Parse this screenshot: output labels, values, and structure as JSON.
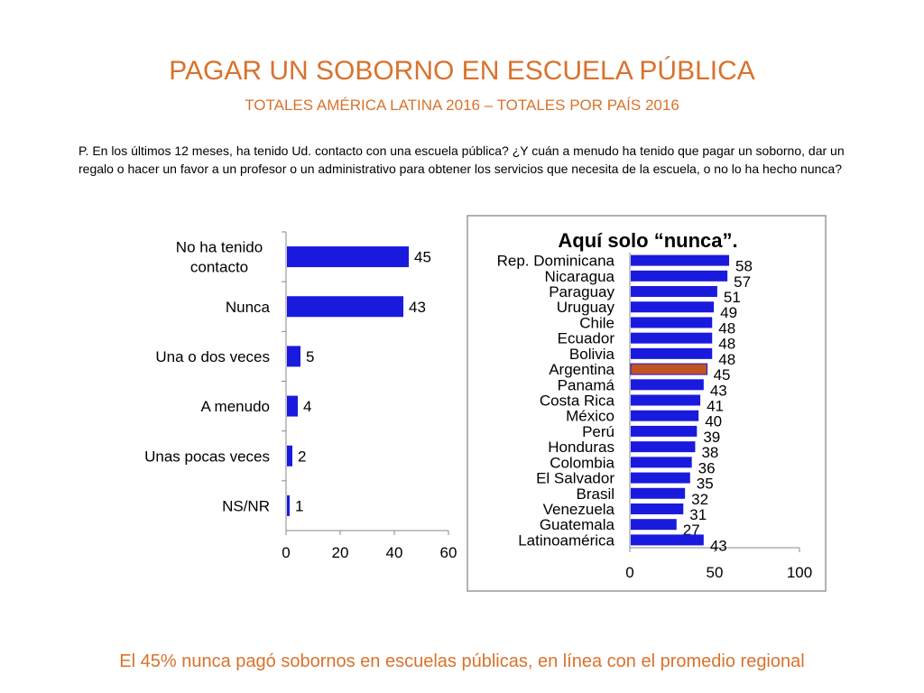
{
  "slide": {
    "title": "PAGAR UN SOBORNO EN ESCUELA PÚBLICA",
    "subtitle": "TOTALES AMÉRICA LATINA 2016 – TOTALES POR PAÍS 2016",
    "question": "P. En los últimos 12 meses, ha tenido Ud. contacto con una escuela pública? ¿Y cuán a menudo ha tenido que pagar un soborno, dar un regalo o hacer un favor a un profesor o un administrativo para obtener los servicios que necesita de la escuela, o no lo ha hecho nunca?",
    "footer": "El 45% nunca pagó sobornos en escuelas públicas, en línea con el promedio regional"
  },
  "chart_data": [
    {
      "type": "bar",
      "orientation": "horizontal",
      "title": "",
      "categories": [
        "No ha tenido contacto",
        "Nunca",
        "Una o dos veces",
        "A menudo",
        "Unas pocas veces",
        "NS/NR"
      ],
      "values": [
        45,
        43,
        5,
        4,
        2,
        1
      ],
      "xlim": [
        0,
        60
      ],
      "xticks": [
        "0",
        "20",
        "40",
        "60"
      ],
      "bar_color": "#1a1adf"
    },
    {
      "type": "bar",
      "orientation": "horizontal",
      "title": "Aquí solo “nunca”.",
      "categories": [
        "Rep. Dominicana",
        "Nicaragua",
        "Paraguay",
        "Uruguay",
        "Chile",
        "Ecuador",
        "Bolivia",
        "Argentina",
        "Panamá",
        "Costa Rica",
        "México",
        "Perú",
        "Honduras",
        "Colombia",
        "El Salvador",
        "Brasil",
        "Venezuela",
        "Guatemala",
        "Latinoamérica"
      ],
      "values": [
        58,
        57,
        51,
        49,
        48,
        48,
        48,
        45,
        43,
        41,
        40,
        39,
        38,
        36,
        35,
        32,
        31,
        27,
        43
      ],
      "highlight": "Argentina",
      "xlim": [
        0,
        100
      ],
      "xticks": [
        "0",
        "50",
        "100"
      ],
      "bar_color": "#1a1adf",
      "highlight_color": "#c0531f"
    }
  ]
}
